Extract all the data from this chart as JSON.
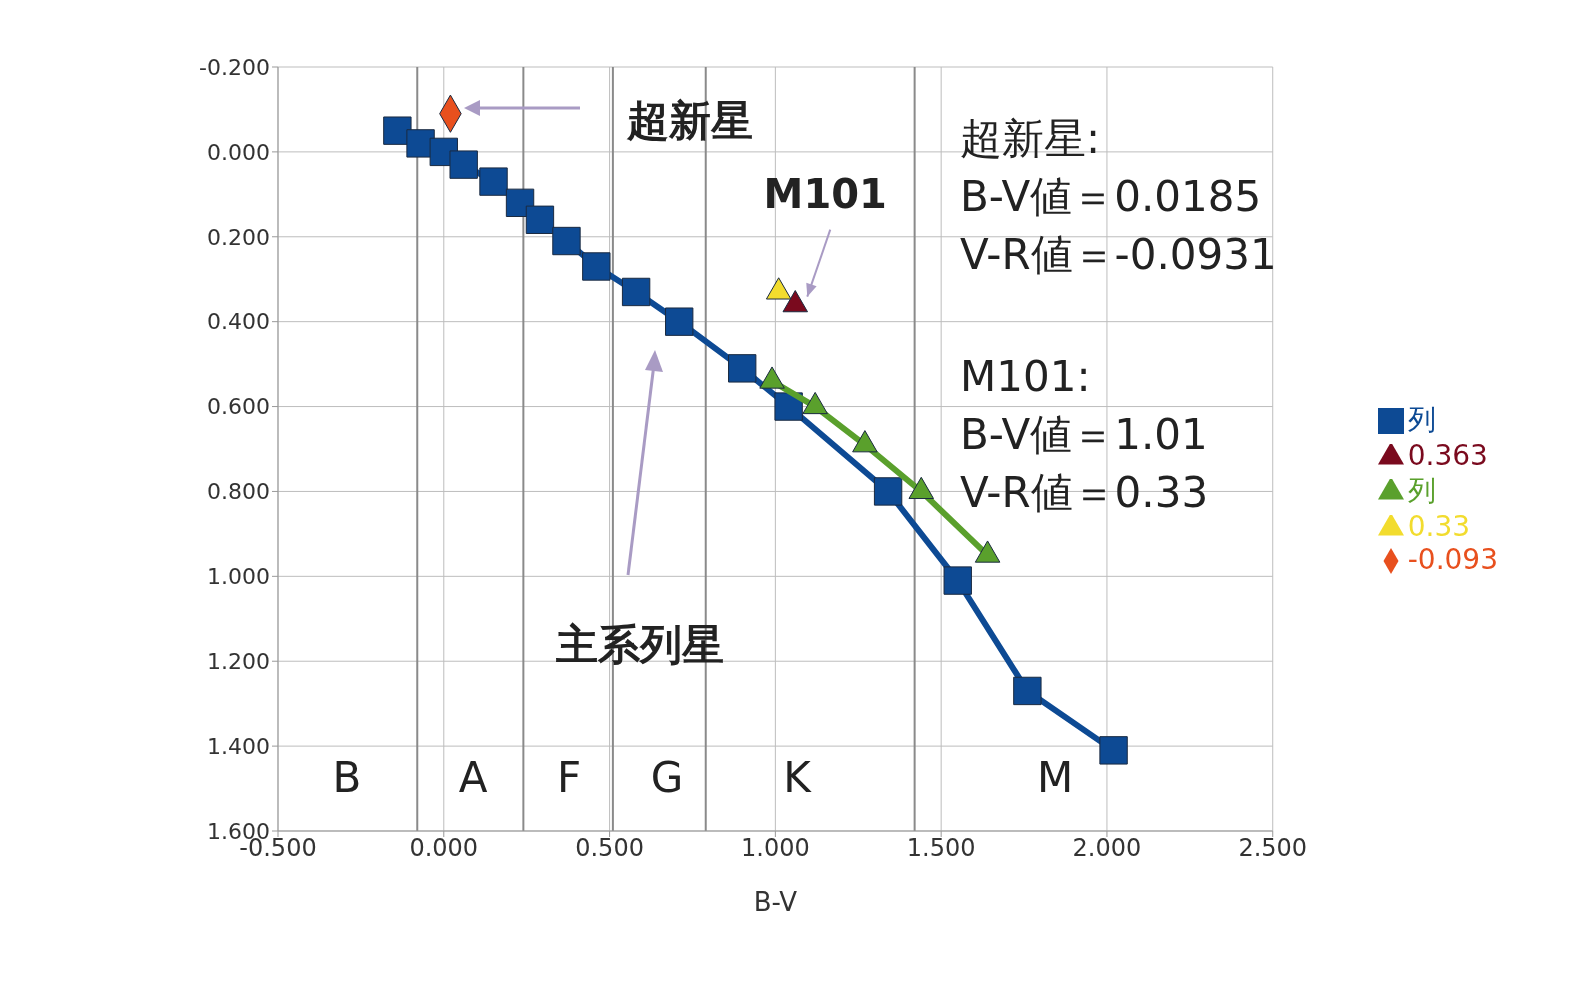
{
  "chart_data": {
    "type": "line",
    "xlabel": "B-V",
    "xlim": [
      -0.5,
      2.5
    ],
    "xticks": [
      {
        "value": -0.5,
        "label": "-0.500"
      },
      {
        "value": 0,
        "label": "0.000"
      },
      {
        "value": 0.5,
        "label": "0.500"
      },
      {
        "value": 1,
        "label": "1.000"
      },
      {
        "value": 1.5,
        "label": "1.500"
      },
      {
        "value": 2,
        "label": "2.000"
      },
      {
        "value": 2.5,
        "label": "2.500"
      }
    ],
    "ylim": [
      1.6,
      -0.2
    ],
    "yticks": [
      {
        "value": -0.2,
        "label": "-0.200"
      },
      {
        "value": 0,
        "label": "0.000"
      },
      {
        "value": 0.2,
        "label": "0.200"
      },
      {
        "value": 0.4,
        "label": "0.400"
      },
      {
        "value": 0.6,
        "label": "0.600"
      },
      {
        "value": 0.8,
        "label": "0.800"
      },
      {
        "value": 1,
        "label": "1.000"
      },
      {
        "value": 1.2,
        "label": "1.200"
      },
      {
        "value": 1.4,
        "label": "1.400"
      },
      {
        "value": 1.6,
        "label": "1.600"
      }
    ],
    "grid": true,
    "legend": "right",
    "series": [
      {
        "name": "列",
        "marker": "square",
        "color": "#0d4a94",
        "x": [
          -0.14,
          -0.07,
          0.0,
          0.06,
          0.15,
          0.23,
          0.29,
          0.37,
          0.46,
          0.58,
          0.71,
          0.9,
          1.04,
          1.34,
          1.55,
          1.76,
          2.02
        ],
        "values": [
          -0.05,
          -0.02,
          0.0,
          0.03,
          0.07,
          0.12,
          0.16,
          0.21,
          0.27,
          0.33,
          0.4,
          0.51,
          0.6,
          0.8,
          1.01,
          1.27,
          1.41
        ]
      },
      {
        "name": "0.363",
        "type": "scatter",
        "marker": "triangle",
        "color": "#7a0a1e",
        "x": [
          1.06
        ],
        "values": [
          0.36
        ]
      },
      {
        "name": "列",
        "marker": "triangle",
        "color": "#5aa02c",
        "x": [
          0.99,
          1.12,
          1.27,
          1.44,
          1.64
        ],
        "values": [
          0.54,
          0.6,
          0.69,
          0.8,
          0.95
        ]
      },
      {
        "name": "0.33",
        "type": "scatter",
        "marker": "triangle",
        "color": "#f2dc2e",
        "x": [
          1.01
        ],
        "values": [
          0.33
        ]
      },
      {
        "name": "-0.093",
        "type": "scatter",
        "marker": "diamond",
        "color": "#e8501e",
        "x": [
          0.02
        ],
        "values": [
          -0.09
        ]
      }
    ],
    "ref_lines": [
      {
        "axis": "x",
        "value": -0.08
      },
      {
        "axis": "x",
        "value": 0.24
      },
      {
        "axis": "x",
        "value": 0.51
      },
      {
        "axis": "x",
        "value": 0.79
      },
      {
        "axis": "x",
        "value": 1.42
      }
    ],
    "annotations": [
      "超新星",
      {
        "text": "M101",
        "x": 1.06,
        "y": 0.36
      },
      "主系列星",
      "超新星:\nB-V値＝0.0185\nV-R値＝-0.0931",
      "M101:\nB-V値＝1.01\nV-R値＝0.33",
      "B",
      "A",
      "F",
      "G",
      "K",
      "M"
    ]
  }
}
